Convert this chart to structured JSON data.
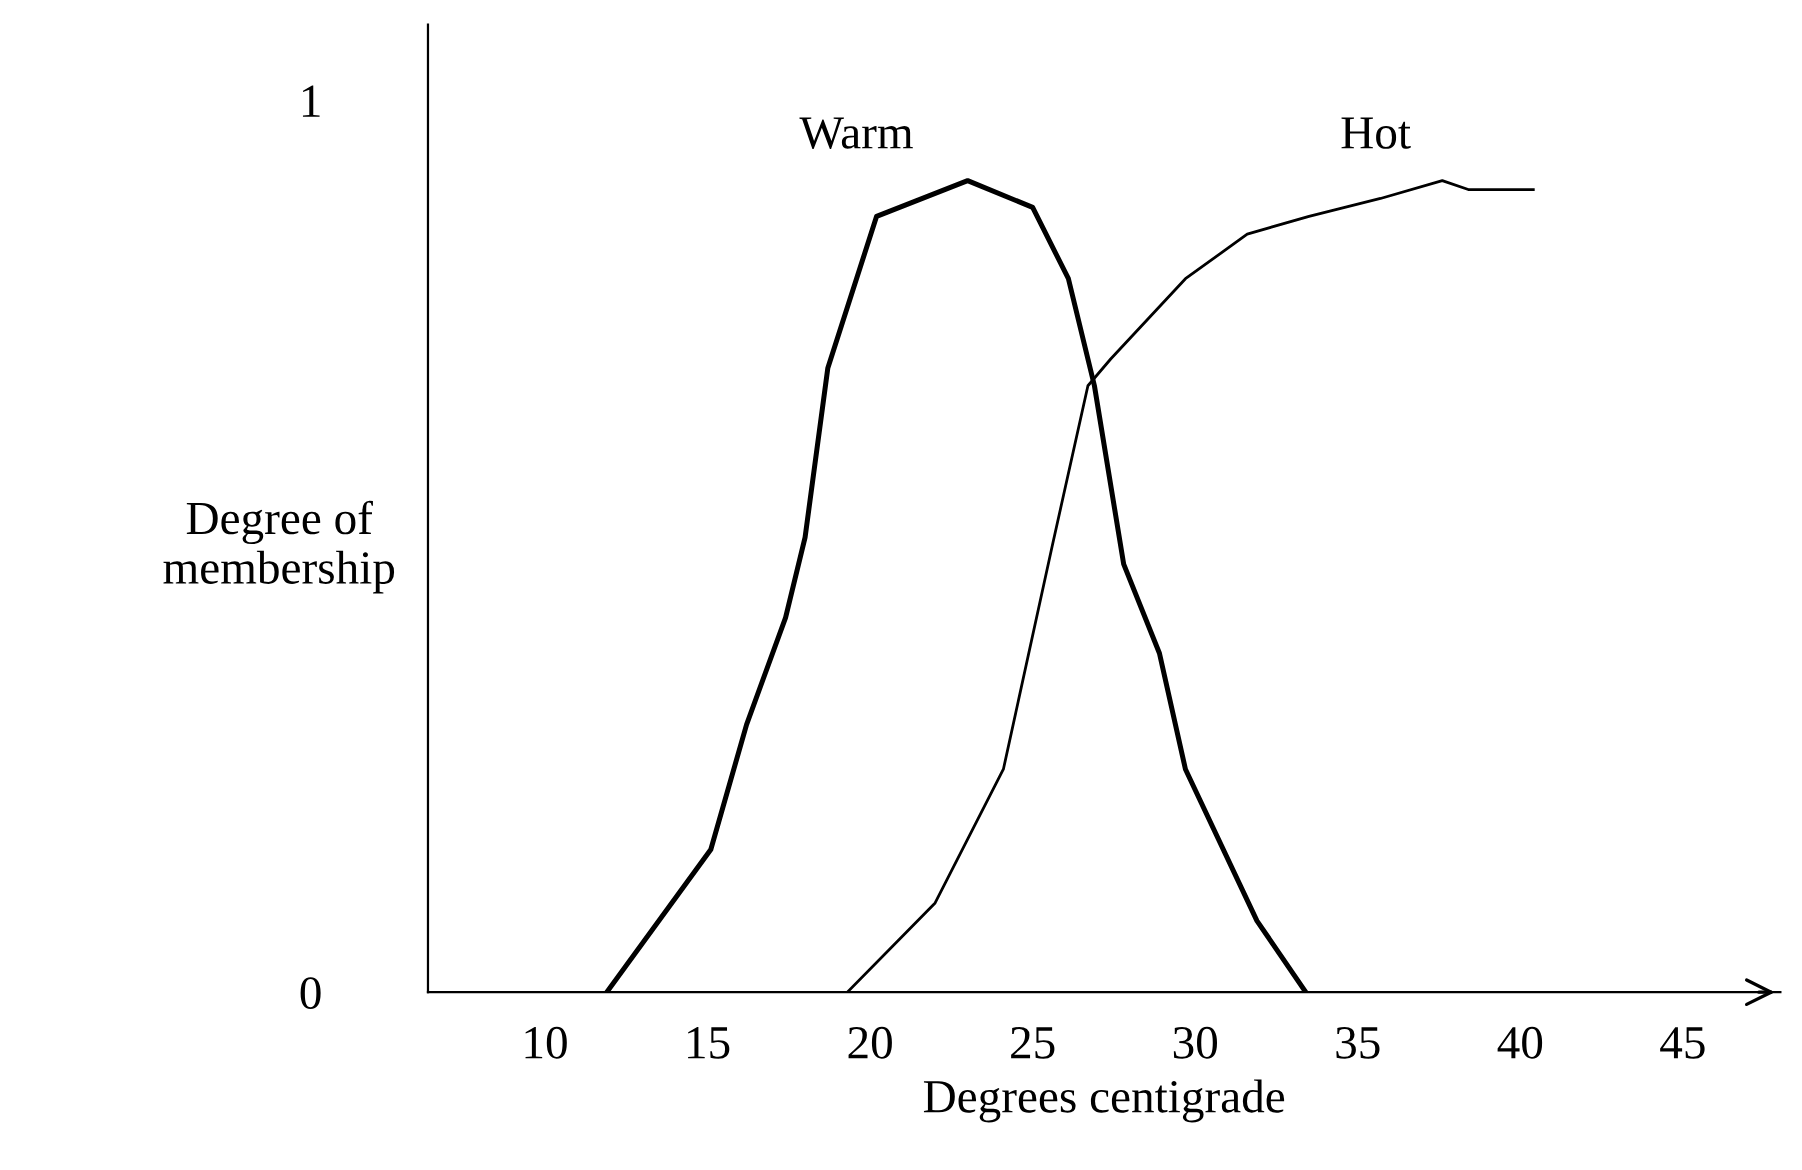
{
  "chart_data": {
    "type": "line",
    "xlabel": "Degrees centigrade",
    "ylabel": "Degree of\nmembership",
    "xlim": [
      6.4,
      48
    ],
    "xticks": [
      10,
      15,
      20,
      25,
      30,
      35,
      40,
      45
    ],
    "ylim": [
      0,
      1.085
    ],
    "yticks": [
      0,
      1
    ],
    "grid": false,
    "legend": false,
    "marker": "none",
    "line_style": "solid",
    "series": [
      {
        "name": "Warm",
        "color": "#000000",
        "x": [
          11.9,
          15.1,
          16.2,
          17.4,
          18.0,
          18.7,
          20.2,
          23.0,
          25.0,
          26.1,
          26.9,
          27.8,
          28.9,
          29.7,
          31.9,
          33.4
        ],
        "values": [
          0,
          0.16,
          0.3,
          0.42,
          0.51,
          0.7,
          0.87,
          0.91,
          0.88,
          0.8,
          0.68,
          0.48,
          0.38,
          0.25,
          0.08,
          0
        ]
      },
      {
        "name": "Hot",
        "color": "#000000",
        "x": [
          19.3,
          22.0,
          24.1,
          25.6,
          26.7,
          27.4,
          29.7,
          31.6,
          33.5,
          35.7,
          37.6,
          38.4,
          40.4
        ],
        "values": [
          0,
          0.1,
          0.25,
          0.5,
          0.68,
          0.71,
          0.8,
          0.85,
          0.87,
          0.89,
          0.91,
          0.9,
          0.9
        ]
      }
    ]
  }
}
